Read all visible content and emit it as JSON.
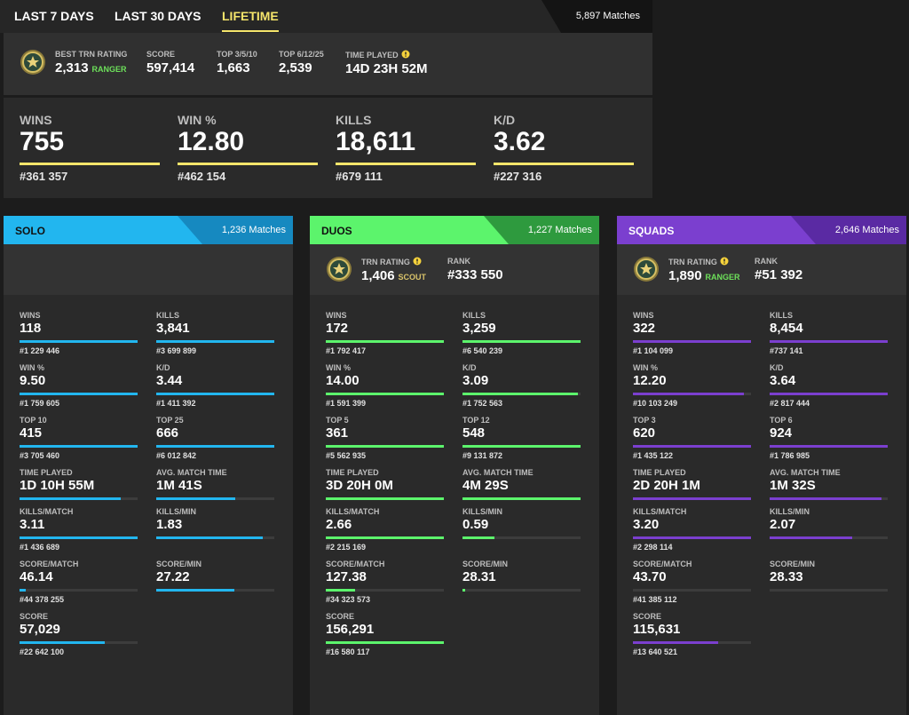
{
  "tabs": [
    "LAST 7 DAYS",
    "LAST 30 DAYS",
    "LIFETIME"
  ],
  "active_tab": 2,
  "matches": "5,897 Matches",
  "overview": [
    {
      "label": "BEST TRN RATING",
      "value": "2,313",
      "badge": "RANGER",
      "badge_color": "#6de05a"
    },
    {
      "label": "SCORE",
      "value": "597,414"
    },
    {
      "label": "TOP 3/5/10",
      "value": "1,663"
    },
    {
      "label": "TOP 6/12/25",
      "value": "2,539"
    },
    {
      "label": "TIME PLAYED",
      "value": "14D 23H 52M",
      "info": true
    }
  ],
  "headline": [
    {
      "label": "WINS",
      "value": "755",
      "rank": "#361 357"
    },
    {
      "label": "WIN %",
      "value": "12.80",
      "rank": "#462 154"
    },
    {
      "label": "KILLS",
      "value": "18,611",
      "rank": "#679 111"
    },
    {
      "label": "K/D",
      "value": "3.62",
      "rank": "#227 316"
    }
  ],
  "modes": [
    {
      "name": "SOLO",
      "matches": "1,236 Matches",
      "color": "#22b6ef",
      "dark": "#1689c0",
      "stats": [
        {
          "label": "WINS",
          "value": "118",
          "rank": "#1 229 446",
          "fill": 100
        },
        {
          "label": "KILLS",
          "value": "3,841",
          "rank": "#3 699 899",
          "fill": 100
        },
        {
          "label": "WIN %",
          "value": "9.50",
          "rank": "#1 759 605",
          "fill": 100
        },
        {
          "label": "K/D",
          "value": "3.44",
          "rank": "#1 411 392",
          "fill": 100
        },
        {
          "label": "TOP 10",
          "value": "415",
          "rank": "#3 705 460",
          "fill": 100
        },
        {
          "label": "TOP 25",
          "value": "666",
          "rank": "#6 012 842",
          "fill": 100
        },
        {
          "label": "TIME PLAYED",
          "value": "1D 10H 55M",
          "fill": 86
        },
        {
          "label": "AVG. MATCH TIME",
          "value": "1M 41S",
          "fill": 67
        },
        {
          "label": "KILLS/MATCH",
          "value": "3.11",
          "rank": "#1 436 689",
          "fill": 100
        },
        {
          "label": "KILLS/MIN",
          "value": "1.83",
          "fill": 90
        },
        {
          "label": "SCORE/MATCH",
          "value": "46.14",
          "rank": "#44 378 255",
          "fill": 5
        },
        {
          "label": "SCORE/MIN",
          "value": "27.22",
          "fill": 66
        },
        {
          "label": "SCORE",
          "value": "57,029",
          "rank": "#22 642 100",
          "fill": 72
        }
      ]
    },
    {
      "name": "DUOS",
      "matches": "1,227 Matches",
      "color": "#5cf46c",
      "dark": "#2e9a3e",
      "rating_label": "TRN RATING",
      "rating": "1,406",
      "badge": "SCOUT",
      "badge_color": "#d9c36a",
      "rank_label": "RANK",
      "rank": "#333 550",
      "stats": [
        {
          "label": "WINS",
          "value": "172",
          "rank": "#1 792 417",
          "fill": 100
        },
        {
          "label": "KILLS",
          "value": "3,259",
          "rank": "#6 540 239",
          "fill": 100
        },
        {
          "label": "WIN %",
          "value": "14.00",
          "rank": "#1 591 399",
          "fill": 100
        },
        {
          "label": "K/D",
          "value": "3.09",
          "rank": "#1 752 563",
          "fill": 98
        },
        {
          "label": "TOP 5",
          "value": "361",
          "rank": "#5 562 935",
          "fill": 100
        },
        {
          "label": "TOP 12",
          "value": "548",
          "rank": "#9 131 872",
          "fill": 100
        },
        {
          "label": "TIME PLAYED",
          "value": "3D 20H 0M",
          "fill": 100
        },
        {
          "label": "AVG. MATCH TIME",
          "value": "4M 29S",
          "fill": 100
        },
        {
          "label": "KILLS/MATCH",
          "value": "2.66",
          "rank": "#2 215 169",
          "fill": 100
        },
        {
          "label": "KILLS/MIN",
          "value": "0.59",
          "fill": 27
        },
        {
          "label": "SCORE/MATCH",
          "value": "127.38",
          "rank": "#34 323 573",
          "fill": 25
        },
        {
          "label": "SCORE/MIN",
          "value": "28.31",
          "fill": 2
        },
        {
          "label": "SCORE",
          "value": "156,291",
          "rank": "#16 580 117",
          "fill": 100
        }
      ]
    },
    {
      "name": "SQUADS",
      "matches": "2,646 Matches",
      "color": "#7b3fcf",
      "dark": "#5a2aa3",
      "rating_label": "TRN RATING",
      "rating": "1,890",
      "badge": "RANGER",
      "badge_color": "#6de05a",
      "rank_label": "RANK",
      "rank": "#51 392",
      "stats": [
        {
          "label": "WINS",
          "value": "322",
          "rank": "#1 104 099",
          "fill": 100
        },
        {
          "label": "KILLS",
          "value": "8,454",
          "rank": "#737 141",
          "fill": 100
        },
        {
          "label": "WIN %",
          "value": "12.20",
          "rank": "#10 103 249",
          "fill": 94
        },
        {
          "label": "K/D",
          "value": "3.64",
          "rank": "#2 817 444",
          "fill": 100
        },
        {
          "label": "TOP 3",
          "value": "620",
          "rank": "#1 435 122",
          "fill": 100
        },
        {
          "label": "TOP 6",
          "value": "924",
          "rank": "#1 786 985",
          "fill": 100
        },
        {
          "label": "TIME PLAYED",
          "value": "2D 20H 1M",
          "fill": 100
        },
        {
          "label": "AVG. MATCH TIME",
          "value": "1M 32S",
          "fill": 95
        },
        {
          "label": "KILLS/MATCH",
          "value": "3.20",
          "rank": "#2 298 114",
          "fill": 100
        },
        {
          "label": "KILLS/MIN",
          "value": "2.07",
          "fill": 70
        },
        {
          "label": "SCORE/MATCH",
          "value": "43.70",
          "rank": "#41 385 112",
          "fill": 0
        },
        {
          "label": "SCORE/MIN",
          "value": "28.33",
          "fill": 0
        },
        {
          "label": "SCORE",
          "value": "115,631",
          "rank": "#13 640 521",
          "fill": 72
        }
      ]
    }
  ]
}
